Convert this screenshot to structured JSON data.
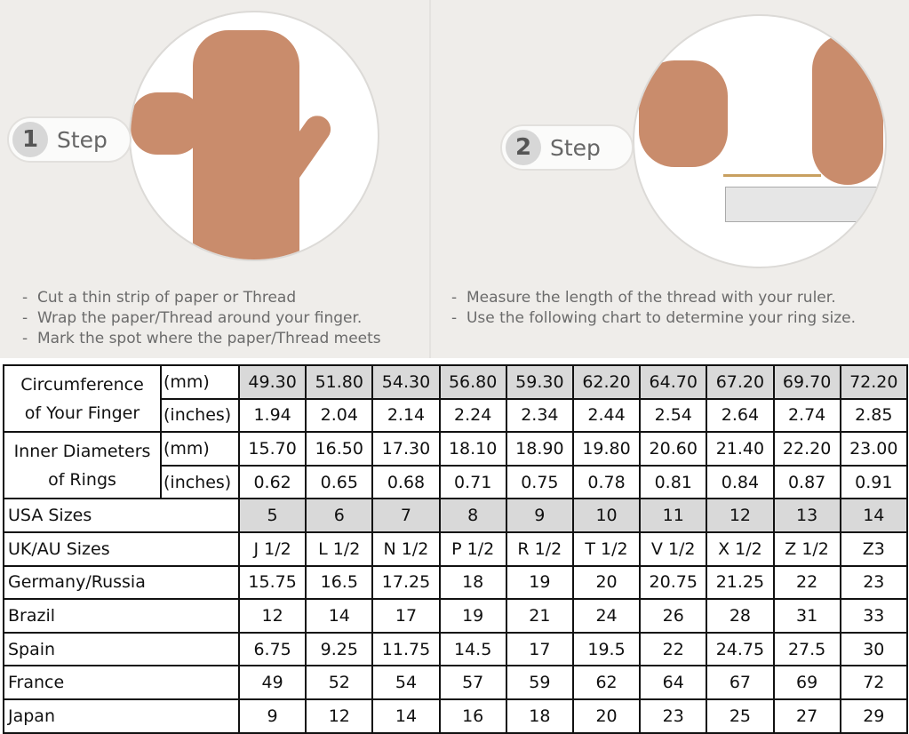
{
  "step1": {
    "number": "1",
    "label": "Step",
    "instructions": [
      "Cut a thin strip of paper or Thread",
      "Wrap the paper/Thread around your finger.",
      "Mark the spot where the paper/Thread meets"
    ]
  },
  "step2": {
    "number": "2",
    "label": "Step",
    "instructions": [
      "Measure the length of the thread with your ruler.",
      "Use the following chart to determine your ring size."
    ]
  },
  "table": {
    "circumference": {
      "label1": "Circumference",
      "label2": "of Your Finger",
      "unit_mm": "(mm)",
      "unit_in": "(inches)",
      "mm": [
        "49.30",
        "51.80",
        "54.30",
        "56.80",
        "59.30",
        "62.20",
        "64.70",
        "67.20",
        "69.70",
        "72.20"
      ],
      "inches": [
        "1.94",
        "2.04",
        "2.14",
        "2.24",
        "2.34",
        "2.44",
        "2.54",
        "2.64",
        "2.74",
        "2.85"
      ]
    },
    "diameter": {
      "label1": "Inner Diameters",
      "label2": "of Rings",
      "unit_mm": "(mm)",
      "unit_in": "(inches)",
      "mm": [
        "15.70",
        "16.50",
        "17.30",
        "18.10",
        "18.90",
        "19.80",
        "20.60",
        "21.40",
        "22.20",
        "23.00"
      ],
      "inches": [
        "0.62",
        "0.65",
        "0.68",
        "0.71",
        "0.75",
        "0.78",
        "0.81",
        "0.84",
        "0.87",
        "0.91"
      ]
    },
    "rows": [
      {
        "label": "USA Sizes",
        "values": [
          "5",
          "6",
          "7",
          "8",
          "9",
          "10",
          "11",
          "12",
          "13",
          "14"
        ],
        "shaded": true
      },
      {
        "label": "UK/AU Sizes",
        "values": [
          "J 1/2",
          "L 1/2",
          "N 1/2",
          "P 1/2",
          "R 1/2",
          "T 1/2",
          "V 1/2",
          "X 1/2",
          "Z 1/2",
          "Z3"
        ]
      },
      {
        "label": "Germany/Russia",
        "values": [
          "15.75",
          "16.5",
          "17.25",
          "18",
          "19",
          "20",
          "20.75",
          "21.25",
          "22",
          "23"
        ]
      },
      {
        "label": "Brazil",
        "values": [
          "12",
          "14",
          "17",
          "19",
          "21",
          "24",
          "26",
          "28",
          "31",
          "33"
        ]
      },
      {
        "label": "Spain",
        "values": [
          "6.75",
          "9.25",
          "11.75",
          "14.5",
          "17",
          "19.5",
          "22",
          "24.75",
          "27.5",
          "30"
        ]
      },
      {
        "label": "France",
        "values": [
          "49",
          "52",
          "54",
          "57",
          "59",
          "62",
          "64",
          "67",
          "69",
          "72"
        ]
      },
      {
        "label": "Japan",
        "values": [
          "9",
          "12",
          "14",
          "16",
          "18",
          "20",
          "23",
          "25",
          "27",
          "29"
        ]
      }
    ]
  }
}
